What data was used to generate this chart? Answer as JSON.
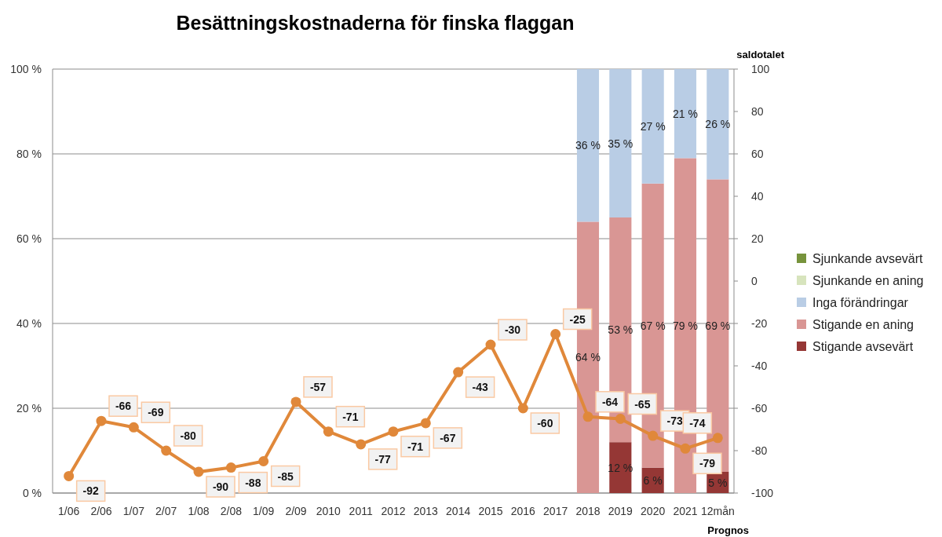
{
  "chart_data": {
    "type": "bar",
    "title": "Besättningskostnaderna för finska flaggan",
    "categories": [
      "1/06",
      "2/06",
      "1/07",
      "2/07",
      "1/08",
      "2/08",
      "1/09",
      "2/09",
      "2010",
      "2011",
      "2012",
      "2013",
      "2014",
      "2015",
      "2016",
      "2017",
      "2018",
      "2019",
      "2020",
      "2021",
      "12mån"
    ],
    "stacked": true,
    "series": [
      {
        "name": "Stigande avsevärt",
        "color": "#953735",
        "values": [
          null,
          null,
          null,
          null,
          null,
          null,
          null,
          null,
          null,
          null,
          null,
          null,
          null,
          null,
          null,
          null,
          0,
          12,
          6,
          0,
          5
        ],
        "value_labels": [
          null,
          null,
          null,
          null,
          null,
          null,
          null,
          null,
          null,
          null,
          null,
          null,
          null,
          null,
          null,
          null,
          null,
          "12 %",
          "6 %",
          null,
          "5 %"
        ]
      },
      {
        "name": "Stigande en aning",
        "color": "#d99694",
        "values": [
          null,
          null,
          null,
          null,
          null,
          null,
          null,
          null,
          null,
          null,
          null,
          null,
          null,
          null,
          null,
          null,
          64,
          53,
          67,
          79,
          69
        ],
        "value_labels": [
          null,
          null,
          null,
          null,
          null,
          null,
          null,
          null,
          null,
          null,
          null,
          null,
          null,
          null,
          null,
          null,
          "64 %",
          "53 %",
          "67 %",
          "79 %",
          "69 %"
        ]
      },
      {
        "name": "Inga förändringar",
        "color": "#b9cde5",
        "values": [
          null,
          null,
          null,
          null,
          null,
          null,
          null,
          null,
          null,
          null,
          null,
          null,
          null,
          null,
          null,
          null,
          36,
          35,
          27,
          21,
          26
        ],
        "value_labels": [
          null,
          null,
          null,
          null,
          null,
          null,
          null,
          null,
          null,
          null,
          null,
          null,
          null,
          null,
          null,
          null,
          "36 %",
          "35 %",
          "27 %",
          "21 %",
          "26 %"
        ]
      },
      {
        "name": "Sjunkande en aning",
        "color": "#d7e4bd",
        "values": [
          null,
          null,
          null,
          null,
          null,
          null,
          null,
          null,
          null,
          null,
          null,
          null,
          null,
          null,
          null,
          null,
          0,
          0,
          0,
          0,
          0
        ]
      },
      {
        "name": "Sjunkande avsevärt",
        "color": "#77933c",
        "values": [
          null,
          null,
          null,
          null,
          null,
          null,
          null,
          null,
          null,
          null,
          null,
          null,
          null,
          null,
          null,
          null,
          0,
          0,
          0,
          0,
          0
        ]
      },
      {
        "type": "line",
        "axis": "y2",
        "color": "#e0883a",
        "marker": "circle",
        "values": [
          -92,
          -66,
          -69,
          -80,
          -90,
          -88,
          -85,
          -57,
          -71,
          -77,
          -71,
          -67,
          -43,
          -30,
          -60,
          -25,
          -64,
          -65,
          -73,
          -79,
          -74
        ],
        "value_labels": [
          "-92",
          "-66",
          "-69",
          "-80",
          "-90",
          "-88",
          "-85",
          "-57",
          "-71",
          "-77",
          "-71",
          "-67",
          "-43",
          "-30",
          "-60",
          "-25",
          "-64",
          "-65",
          "-73",
          "-79",
          "-74"
        ]
      }
    ],
    "ylim": [
      0,
      100
    ],
    "yticks": [
      {
        "value": 0,
        "label": "0 %"
      },
      {
        "value": 20,
        "label": "20 %"
      },
      {
        "value": 40,
        "label": "40 %"
      },
      {
        "value": 60,
        "label": "60 %"
      },
      {
        "value": 80,
        "label": "80 %"
      },
      {
        "value": 100,
        "label": "100 %"
      }
    ],
    "y2label": "saldotalet",
    "y2lim": [
      -100,
      100
    ],
    "y2ticks": [
      -100,
      -80,
      -60,
      -40,
      -20,
      0,
      20,
      40,
      60,
      80,
      100
    ],
    "grid": "y",
    "legend": "right",
    "annotations": [
      "Prognos"
    ]
  }
}
